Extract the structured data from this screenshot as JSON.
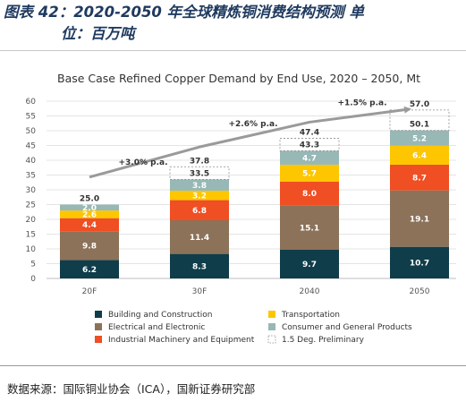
{
  "figure": {
    "title_line1": "图表 42：2020-2050 年全球精炼铜消费结构预测  单",
    "title_line2": "位：百万吨",
    "source": "数据来源：国际铜业协会（ICA），国新证券研究部"
  },
  "chart_data": {
    "type": "bar",
    "stacked": true,
    "title": "Base Case Refined Copper Demand by End Use, 2020 – 2050, Mt",
    "categories": [
      "20F",
      "30F",
      "2040",
      "2050"
    ],
    "ylim": [
      0,
      60
    ],
    "yticks": [
      0,
      5,
      10,
      15,
      20,
      25,
      30,
      35,
      40,
      45,
      50,
      55,
      60
    ],
    "grid": true,
    "legend_position": "bottom",
    "series": [
      {
        "name": "Building and Construction",
        "color": "#0f3d4a",
        "label_color": "#ffffff",
        "values": [
          6.2,
          8.3,
          9.7,
          10.7
        ]
      },
      {
        "name": "Electrical and Electronic",
        "color": "#8b7259",
        "label_color": "#ffffff",
        "values": [
          9.8,
          11.4,
          15.1,
          19.1
        ]
      },
      {
        "name": "Industrial Machinery and Equipment",
        "color": "#f04e23",
        "label_color": "#ffffff",
        "values": [
          4.4,
          6.8,
          8.0,
          8.7
        ]
      },
      {
        "name": "Transportation",
        "color": "#fdc600",
        "label_color": "#ffffff",
        "values": [
          2.6,
          3.2,
          5.7,
          6.4
        ]
      },
      {
        "name": "Consumer and General Products",
        "color": "#97b8b5",
        "label_color": "#ffffff",
        "values": [
          2.0,
          3.8,
          4.7,
          5.2
        ]
      }
    ],
    "totals": [
      "25.0",
      "33.5",
      "43.3",
      "50.1"
    ],
    "preliminary": {
      "name": "1.5 Deg. Preliminary",
      "values": [
        null,
        37.8,
        47.4,
        57.0
      ],
      "labels": [
        "",
        "37.8",
        "47.4",
        "57.0"
      ]
    },
    "growth_annotations": [
      {
        "text": "+3.0% p.a.",
        "value": 38.5
      },
      {
        "text": "+2.6% p.a.",
        "value": 51.5
      },
      {
        "text": "+1.5% p.a.",
        "value": 58.7
      }
    ]
  }
}
